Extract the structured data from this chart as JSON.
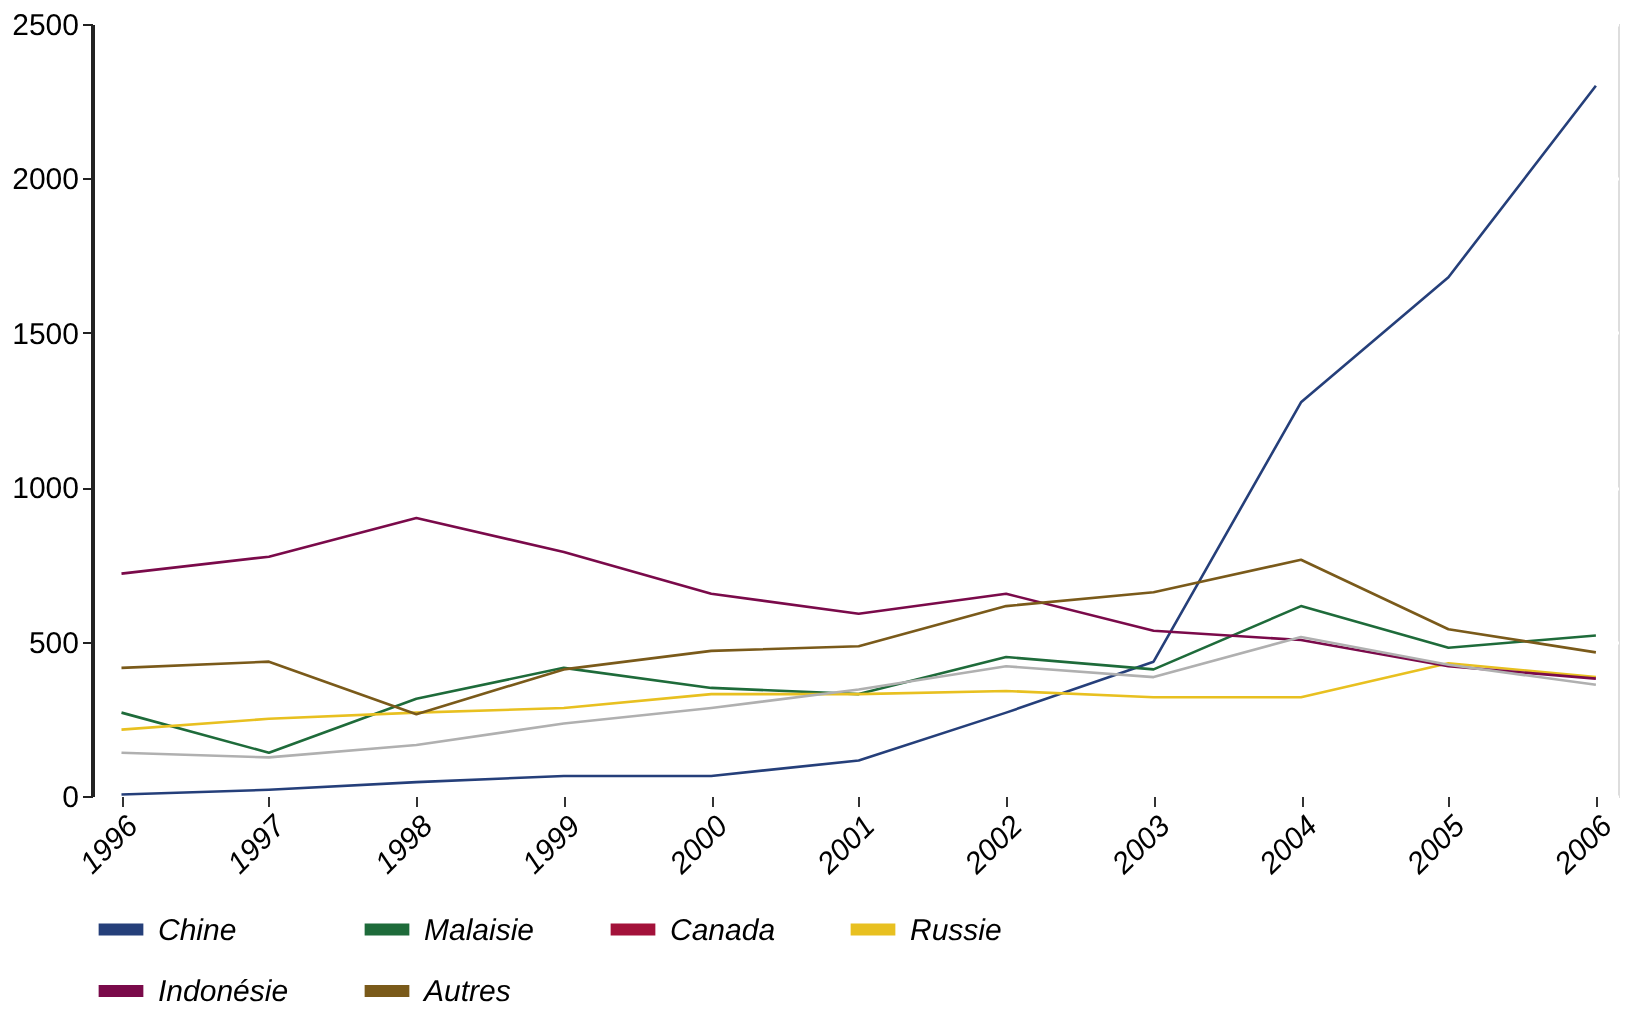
{
  "chart_data": {
    "type": "line",
    "x": [
      1996,
      1997,
      1998,
      1999,
      2000,
      2001,
      2002,
      2003,
      2004,
      2005,
      2006
    ],
    "series": [
      {
        "name": "Chine",
        "color": "#253f7a",
        "values": [
          5,
          20,
          45,
          65,
          65,
          115,
          270,
          435,
          1275,
          1680,
          2300
        ]
      },
      {
        "name": "Malaisie",
        "color": "#1e6b3a",
        "values": [
          270,
          140,
          315,
          415,
          350,
          330,
          450,
          410,
          615,
          480,
          520
        ]
      },
      {
        "name": "Canada",
        "color": "#a3123a",
        "values": [
          null,
          null,
          null,
          null,
          null,
          null,
          null,
          null,
          null,
          null,
          null
        ]
      },
      {
        "name": "Russie",
        "color": "#e8c020",
        "values": [
          215,
          250,
          270,
          285,
          330,
          330,
          340,
          320,
          320,
          430,
          385
        ]
      },
      {
        "name": "Indonésie",
        "color": "#7a0a4a",
        "values": [
          720,
          775,
          900,
          790,
          655,
          590,
          655,
          535,
          505,
          420,
          380
        ]
      },
      {
        "name": "Autres",
        "color": "#7a5a1a",
        "values": [
          415,
          435,
          265,
          410,
          470,
          485,
          615,
          660,
          765,
          540,
          465
        ]
      },
      {
        "color": "#b0b0b0",
        "values": [
          140,
          125,
          165,
          235,
          285,
          345,
          420,
          385,
          515,
          425,
          360
        ]
      }
    ],
    "xlim": [
      1995.8,
      2006.15
    ],
    "xticks": [
      1996,
      1997,
      1998,
      1999,
      2000,
      2001,
      2002,
      2003,
      2004,
      2005,
      2006
    ],
    "ylim": [
      0,
      2500
    ],
    "yticks": [
      0,
      500,
      1000,
      1500,
      2000,
      2500
    ],
    "grid": "y",
    "legend": "bottom",
    "marker": "none",
    "line_style": "solid"
  }
}
